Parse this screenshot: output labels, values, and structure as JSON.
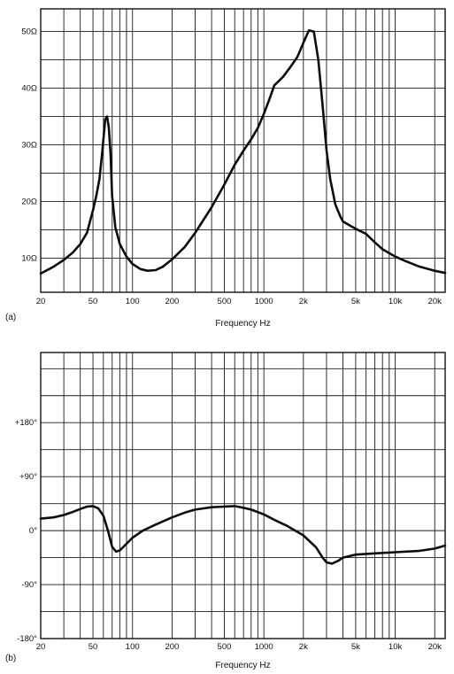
{
  "chart_data": [
    {
      "type": "line",
      "panel_label": "(a)",
      "xlabel": "Frequency Hz",
      "ylabel": "",
      "x_scale": "log",
      "xlim": [
        20,
        24000
      ],
      "ylim": [
        4,
        54
      ],
      "x_ticks": [
        {
          "value": 20,
          "label": "20"
        },
        {
          "value": 50,
          "label": "50"
        },
        {
          "value": 100,
          "label": "100"
        },
        {
          "value": 200,
          "label": "200"
        },
        {
          "value": 500,
          "label": "500"
        },
        {
          "value": 1000,
          "label": "1000"
        },
        {
          "value": 2000,
          "label": "2k"
        },
        {
          "value": 5000,
          "label": "5k"
        },
        {
          "value": 10000,
          "label": "10k"
        },
        {
          "value": 20000,
          "label": "20k"
        }
      ],
      "y_ticks": [
        {
          "value": 10,
          "label": "10Ω"
        },
        {
          "value": 20,
          "label": "20Ω"
        },
        {
          "value": 30,
          "label": "30Ω"
        },
        {
          "value": 40,
          "label": "40Ω"
        },
        {
          "value": 50,
          "label": "50Ω"
        }
      ],
      "grid": true,
      "series": [
        {
          "x": [
            20,
            25,
            30,
            35,
            40,
            45,
            50,
            53,
            56,
            59,
            62,
            64,
            66,
            68,
            70,
            74,
            80,
            90,
            100,
            115,
            130,
            150,
            170,
            200,
            250,
            300,
            400,
            500,
            600,
            700,
            800,
            900,
            1000,
            1100,
            1200,
            1400,
            1600,
            1800,
            2000,
            2200,
            2400,
            2600,
            2800,
            3000,
            3200,
            3500,
            3800,
            4000,
            4500,
            5000,
            6000,
            7000,
            8000,
            10000,
            12000,
            15000,
            20000,
            24000
          ],
          "y": [
            7.3,
            8.5,
            9.7,
            11,
            12.5,
            14.5,
            18.5,
            21,
            24,
            29,
            34.5,
            35,
            33,
            28.5,
            21,
            15.5,
            12.5,
            10.3,
            9,
            8.1,
            7.8,
            7.9,
            8.5,
            9.8,
            12,
            14.5,
            19,
            23,
            26.5,
            29,
            31,
            33,
            35.5,
            38,
            40.5,
            42,
            43.8,
            45.5,
            48,
            50.2,
            50,
            45,
            37,
            29,
            24,
            19.5,
            17.5,
            16.5,
            15.8,
            15.2,
            14.3,
            12.8,
            11.6,
            10.3,
            9.5,
            8.6,
            7.8,
            7.4
          ]
        }
      ]
    },
    {
      "type": "line",
      "panel_label": "(b)",
      "xlabel": "Frequency Hz",
      "ylabel": "",
      "x_scale": "log",
      "xlim": [
        20,
        24000
      ],
      "ylim": [
        -180,
        297
      ],
      "x_ticks": [
        {
          "value": 20,
          "label": "20"
        },
        {
          "value": 50,
          "label": "50"
        },
        {
          "value": 100,
          "label": "100"
        },
        {
          "value": 200,
          "label": "200"
        },
        {
          "value": 500,
          "label": "500"
        },
        {
          "value": 1000,
          "label": "1000"
        },
        {
          "value": 2000,
          "label": "2k"
        },
        {
          "value": 5000,
          "label": "5k"
        },
        {
          "value": 10000,
          "label": "10k"
        },
        {
          "value": 20000,
          "label": "20k"
        }
      ],
      "y_ticks": [
        {
          "value": -180,
          "label": "-180°"
        },
        {
          "value": -90,
          "label": "-90°"
        },
        {
          "value": 0,
          "label": "0°"
        },
        {
          "value": 90,
          "label": "+90°"
        },
        {
          "value": 180,
          "label": "+180°"
        }
      ],
      "grid": true,
      "series": [
        {
          "x": [
            20,
            25,
            30,
            35,
            40,
            45,
            50,
            55,
            60,
            65,
            70,
            75,
            80,
            90,
            100,
            120,
            150,
            200,
            250,
            300,
            400,
            500,
            600,
            700,
            800,
            1000,
            1200,
            1500,
            2000,
            2500,
            2800,
            3000,
            3300,
            3700,
            4000,
            5000,
            7000,
            10000,
            15000,
            20000,
            24000
          ],
          "y": [
            20,
            22,
            26,
            31,
            36,
            40,
            41,
            37,
            25,
            0,
            -27,
            -35,
            -33,
            -22,
            -12,
            0,
            10,
            22,
            30,
            35,
            39,
            40,
            41,
            38,
            35,
            27,
            18,
            8,
            -8,
            -28,
            -45,
            -53,
            -55,
            -50,
            -45,
            -40,
            -38,
            -36,
            -34,
            -30,
            -25
          ]
        }
      ]
    }
  ]
}
